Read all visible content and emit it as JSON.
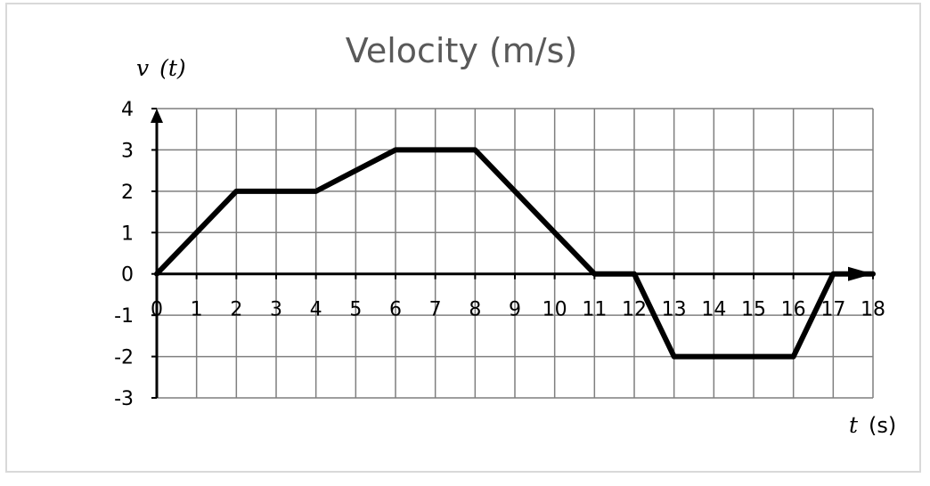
{
  "chart_data": {
    "type": "line",
    "title": "Velocity (m/s)",
    "ylabel": {
      "var": "v",
      "arg": "(t)"
    },
    "xlabel": {
      "var": "t",
      "unit": "(s)"
    },
    "xlim": [
      0,
      18
    ],
    "ylim": [
      -3,
      4
    ],
    "grid": true,
    "x_ticks": [
      0,
      1,
      2,
      3,
      4,
      5,
      6,
      7,
      8,
      9,
      10,
      11,
      12,
      13,
      14,
      15,
      16,
      17,
      18
    ],
    "y_ticks": [
      4,
      3,
      2,
      1,
      0,
      -1,
      -2,
      -3
    ],
    "series": [
      {
        "x": [
          0,
          2,
          4,
          6,
          8,
          11,
          12,
          13,
          16,
          17,
          18
        ],
        "y": [
          0,
          2,
          2,
          3,
          3,
          0,
          0,
          -2,
          -2,
          0,
          0
        ],
        "color": "#000000"
      }
    ]
  }
}
